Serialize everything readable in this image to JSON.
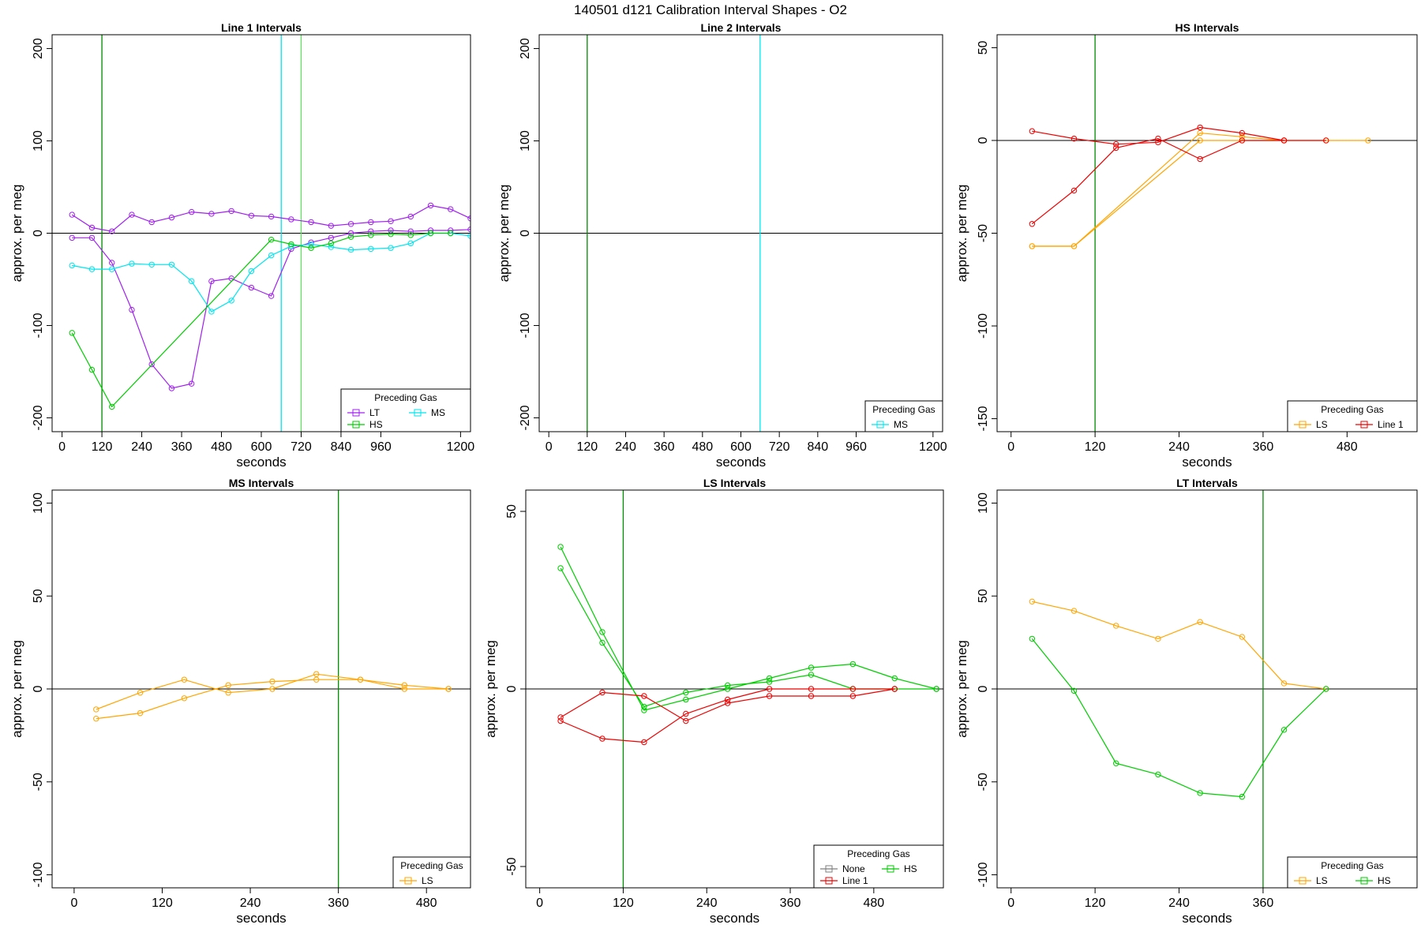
{
  "figure": {
    "title": "140501   d121   Calibration Interval Shapes - O2"
  },
  "colors": {
    "LT": "#a020f0",
    "MS": "#00e5ee",
    "HS": "#00cd00",
    "LS": "#ffa500",
    "Line 1": "#ee0000",
    "None": "#7f7f7f",
    "vline_dark": "#008b00",
    "vline_light": "#5fe35f",
    "vline_cyan": "#00e5ee",
    "zero": "#000000"
  },
  "chart_data": [
    {
      "type": "line",
      "title": "Line 1 Intervals",
      "xlabel": "seconds",
      "ylabel": "approx. per meg",
      "xlim": [
        -30,
        1230
      ],
      "ylim": [
        -215,
        215
      ],
      "xticks": [
        0,
        120,
        240,
        360,
        480,
        600,
        720,
        840,
        960,
        1200
      ],
      "yticks": [
        -200,
        -100,
        0,
        100,
        200
      ],
      "hline": 0,
      "vlines": [
        {
          "x": 120,
          "color": "vline_dark"
        },
        {
          "x": 660,
          "color": "vline_cyan"
        },
        {
          "x": 720,
          "color": "vline_light"
        }
      ],
      "legend": {
        "title": "Preceding Gas",
        "entries": [
          "LT",
          "MS",
          "HS"
        ],
        "position": "bottom-right",
        "columns": 2
      },
      "series": [
        {
          "name": "LT",
          "x": [
            30,
            90,
            150,
            210,
            270,
            330,
            390,
            450,
            510,
            570,
            630,
            690,
            750,
            810,
            870,
            930,
            990,
            1050,
            1110,
            1170,
            1230
          ],
          "y": [
            -5,
            -5,
            -32,
            -83,
            -142,
            -168,
            -163,
            -52,
            -49,
            -59,
            -68,
            -17,
            -10,
            -5,
            0,
            2,
            3,
            2,
            3,
            3,
            4
          ]
        },
        {
          "name": "LT",
          "x": [
            30,
            90,
            150,
            210,
            270,
            330,
            390,
            450,
            510,
            570,
            630,
            690,
            750,
            810,
            870,
            930,
            990,
            1050,
            1110,
            1170,
            1230
          ],
          "y": [
            20,
            6,
            2,
            20,
            12,
            17,
            23,
            21,
            24,
            19,
            18,
            15,
            12,
            8,
            10,
            12,
            13,
            18,
            30,
            26,
            16
          ]
        },
        {
          "name": "MS",
          "x": [
            30,
            90,
            150,
            210,
            270,
            330,
            390,
            450,
            510,
            570,
            630,
            690,
            750,
            810,
            870,
            930,
            990,
            1050,
            1110,
            1170,
            1230
          ],
          "y": [
            -35,
            -39,
            -39,
            -33,
            -34,
            -34,
            -52,
            -85,
            -73,
            -41,
            -24,
            -14,
            -12,
            -15,
            -18,
            -17,
            -16,
            -11,
            0,
            0,
            -3
          ]
        },
        {
          "name": "HS",
          "x": [
            30,
            90,
            150,
            630,
            690,
            750,
            810,
            870,
            930,
            990,
            1050,
            1110,
            1170
          ],
          "y": [
            -108,
            -148,
            -188,
            -7,
            -12,
            -16,
            -11,
            -4,
            -2,
            -1,
            -2,
            0,
            0
          ]
        }
      ]
    },
    {
      "type": "line",
      "title": "Line 2 Intervals",
      "xlabel": "seconds",
      "ylabel": "approx. per meg",
      "xlim": [
        -30,
        1230
      ],
      "ylim": [
        -215,
        215
      ],
      "xticks": [
        0,
        120,
        240,
        360,
        480,
        600,
        720,
        840,
        960,
        1200
      ],
      "yticks": [
        -200,
        -100,
        0,
        100,
        200
      ],
      "hline": 0,
      "vlines": [
        {
          "x": 120,
          "color": "vline_dark"
        },
        {
          "x": 660,
          "color": "vline_cyan"
        }
      ],
      "legend": {
        "title": "Preceding Gas",
        "entries": [
          "MS"
        ],
        "position": "bottom-right",
        "columns": 1
      },
      "series": []
    },
    {
      "type": "line",
      "title": "HS Intervals",
      "xlabel": "seconds",
      "ylabel": "approx. per meg",
      "xlim": [
        -20,
        580
      ],
      "ylim": [
        -157,
        57
      ],
      "xticks": [
        0,
        120,
        240,
        360,
        480
      ],
      "yticks": [
        -150,
        -100,
        -50,
        0,
        50
      ],
      "hline": 0,
      "vlines": [
        {
          "x": 120,
          "color": "vline_dark"
        }
      ],
      "legend": {
        "title": "Preceding Gas",
        "entries": [
          "LS",
          "Line 1"
        ],
        "position": "bottom-right",
        "columns": 2
      },
      "series": [
        {
          "name": "LS",
          "x": [
            30,
            90,
            270,
            330,
            390,
            450,
            510
          ],
          "y": [
            -57,
            -57,
            4,
            2,
            0,
            0,
            0
          ]
        },
        {
          "name": "LS",
          "x": [
            30,
            90,
            270,
            330,
            390
          ],
          "y": [
            -57,
            -57,
            0,
            0,
            0
          ]
        },
        {
          "name": "Line 1",
          "x": [
            30,
            90,
            150,
            210,
            270,
            330,
            390,
            450
          ],
          "y": [
            5,
            1,
            -2,
            -1,
            7,
            4,
            0,
            0
          ]
        },
        {
          "name": "Line 1",
          "x": [
            30,
            90,
            150,
            210,
            270,
            330,
            390
          ],
          "y": [
            -45,
            -27,
            -4,
            1,
            -10,
            0,
            0
          ]
        }
      ]
    },
    {
      "type": "line",
      "title": "MS Intervals",
      "xlabel": "seconds",
      "ylabel": "approx. per meg",
      "xlim": [
        -30,
        540
      ],
      "ylim": [
        -107,
        107
      ],
      "xticks": [
        0,
        120,
        240,
        360,
        480
      ],
      "yticks": [
        -100,
        -50,
        0,
        50,
        100
      ],
      "hline": 0,
      "vlines": [
        {
          "x": 360,
          "color": "vline_dark"
        }
      ],
      "legend": {
        "title": "Preceding Gas",
        "entries": [
          "LS"
        ],
        "position": "bottom-right",
        "columns": 1
      },
      "series": [
        {
          "name": "LS",
          "x": [
            30,
            90,
            150,
            210,
            270,
            330,
            390,
            450,
            510
          ],
          "y": [
            -16,
            -13,
            -5,
            2,
            4,
            5,
            5,
            0,
            0
          ]
        },
        {
          "name": "LS",
          "x": [
            30,
            90,
            150,
            210,
            270,
            330,
            390,
            450,
            510
          ],
          "y": [
            -11,
            -2,
            5,
            -2,
            0,
            8,
            5,
            2,
            0
          ]
        }
      ]
    },
    {
      "type": "line",
      "title": "LS Intervals",
      "xlabel": "seconds",
      "ylabel": "approx. per meg",
      "xlim": [
        -20,
        580
      ],
      "ylim": [
        -56,
        56
      ],
      "xticks": [
        0,
        120,
        240,
        360,
        480
      ],
      "yticks": [
        -50,
        0,
        50
      ],
      "hline": 0,
      "vlines": [
        {
          "x": 120,
          "color": "vline_dark"
        }
      ],
      "legend": {
        "title": "Preceding Gas",
        "entries": [
          "None",
          "HS",
          "Line 1"
        ],
        "position": "bottom-right",
        "columns": 2
      },
      "series": [
        {
          "name": "HS",
          "x": [
            30,
            90,
            150,
            210,
            270,
            330,
            390,
            450,
            510,
            570
          ],
          "y": [
            40,
            16,
            -6,
            -3,
            0,
            3,
            6,
            7,
            3,
            0
          ]
        },
        {
          "name": "HS",
          "x": [
            30,
            90,
            150,
            210,
            270,
            330,
            390,
            450,
            510,
            570
          ],
          "y": [
            34,
            13,
            -5,
            -1,
            1,
            2,
            4,
            0,
            0,
            0
          ]
        },
        {
          "name": "Line 1",
          "x": [
            30,
            90,
            150,
            210,
            270,
            330,
            390,
            450,
            510
          ],
          "y": [
            -8,
            -1,
            -2,
            -9,
            -4,
            -2,
            -2,
            -2,
            0
          ]
        },
        {
          "name": "Line 1",
          "x": [
            30,
            90,
            150,
            210,
            270,
            330,
            390,
            450,
            510
          ],
          "y": [
            -9,
            -14,
            -15,
            -7,
            -3,
            0,
            0,
            0,
            0
          ]
        }
      ]
    },
    {
      "type": "line",
      "title": "LT Intervals",
      "xlabel": "seconds",
      "ylabel": "approx. per meg",
      "xlim": [
        -20,
        580
      ],
      "ylim": [
        -107,
        107
      ],
      "xticks": [
        0,
        120,
        240,
        360
      ],
      "yticks": [
        -100,
        -50,
        0,
        50,
        100
      ],
      "hline": 0,
      "vlines": [
        {
          "x": 360,
          "color": "vline_dark"
        }
      ],
      "legend": {
        "title": "Preceding Gas",
        "entries": [
          "LS",
          "HS"
        ],
        "position": "bottom-right",
        "columns": 2
      },
      "series": [
        {
          "name": "LS",
          "x": [
            30,
            90,
            150,
            210,
            270,
            330,
            390,
            450
          ],
          "y": [
            47,
            42,
            34,
            27,
            36,
            28,
            3,
            0
          ]
        },
        {
          "name": "HS",
          "x": [
            30,
            90,
            150,
            210,
            270,
            330,
            390,
            450
          ],
          "y": [
            27,
            -1,
            -40,
            -46,
            -56,
            -58,
            -22,
            0
          ]
        }
      ]
    }
  ]
}
